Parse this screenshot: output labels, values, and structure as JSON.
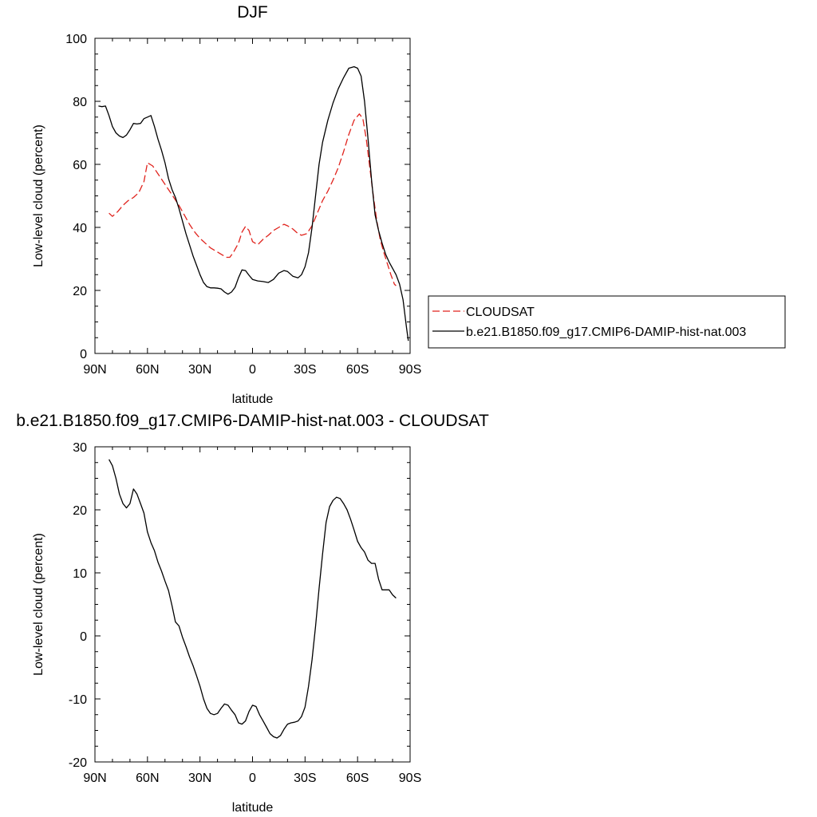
{
  "chart_data": [
    {
      "type": "line",
      "title": "DJF",
      "xlabel": "latitude",
      "ylabel": "Low-level cloud (percent)",
      "xlim": [
        90,
        -90
      ],
      "ylim": [
        0,
        100
      ],
      "xticks": [
        90,
        60,
        30,
        0,
        -30,
        -60,
        -90
      ],
      "xticklabels": [
        "90N",
        "60N",
        "30N",
        "0",
        "30S",
        "60S",
        "90S"
      ],
      "yticks": [
        0,
        20,
        40,
        60,
        80,
        100
      ],
      "yticklabels": [
        "0",
        "20",
        "40",
        "60",
        "80",
        "100"
      ],
      "legend": {
        "placement": "right",
        "entries": [
          "CLOUDSAT",
          "b.e21.B1850.f09_g17.CMIP6-DAMIP-hist-nat.003"
        ]
      },
      "series": [
        {
          "name": "CLOUDSAT",
          "color": "#e0231d",
          "dash": true,
          "x": [
            82,
            80,
            77,
            74,
            71,
            68,
            65,
            62,
            60,
            57,
            54,
            51,
            48,
            45,
            42,
            39,
            36,
            33,
            30,
            27,
            24,
            21,
            18,
            15,
            13,
            11,
            8,
            6,
            4,
            2,
            0,
            -3,
            -6,
            -9,
            -12,
            -15,
            -18,
            -20,
            -23,
            -26,
            -28,
            -31,
            -34,
            -37,
            -40,
            -43,
            -46,
            -49,
            -52,
            -55,
            -58,
            -61,
            -63,
            -65,
            -67,
            -69,
            -71,
            -73,
            -75,
            -77,
            -79,
            -81,
            -82
          ],
          "y": [
            44.5,
            43.5,
            45,
            47,
            48.5,
            49.5,
            51,
            54.5,
            60.5,
            59.5,
            57,
            54.5,
            52,
            49.5,
            47,
            44,
            41,
            38.5,
            36.5,
            35,
            33.5,
            32.5,
            31.5,
            30.5,
            30.5,
            32,
            35,
            38.5,
            40.3,
            39,
            35.5,
            34.5,
            36.2,
            37.5,
            39,
            40,
            41,
            40.5,
            39.5,
            38,
            37.5,
            38,
            40.5,
            44.5,
            48.5,
            51.5,
            55,
            59,
            64,
            69.5,
            74,
            76,
            74.5,
            68,
            59,
            50,
            42,
            36,
            32,
            28.5,
            25,
            22,
            21.5
          ]
        },
        {
          "name": "b.e21.B1850.f09_g17.CMIP6-DAMIP-hist-nat.003",
          "color": "#000000",
          "dash": false,
          "x": [
            88,
            86,
            84,
            82,
            80,
            78,
            76,
            74,
            72,
            70,
            68,
            66,
            64,
            62,
            60,
            58,
            56,
            54,
            52,
            50,
            48,
            46,
            44,
            42,
            40,
            38,
            36,
            34,
            32,
            30,
            28,
            26,
            24,
            22,
            20,
            18,
            16,
            14,
            12,
            10,
            8,
            6,
            4,
            2,
            0,
            -3,
            -6,
            -9,
            -12,
            -15,
            -18,
            -20,
            -23,
            -26,
            -28,
            -30,
            -32,
            -34,
            -36,
            -38,
            -40,
            -43,
            -46,
            -49,
            -52,
            -55,
            -58,
            -60,
            -62,
            -64,
            -66,
            -68,
            -70,
            -72,
            -74,
            -76,
            -78,
            -80,
            -82,
            -84,
            -86,
            -88,
            -89
          ],
          "y": [
            78.5,
            78.3,
            78.5,
            75.5,
            72,
            70,
            69,
            68.5,
            69.3,
            71,
            73,
            72.8,
            73,
            74.5,
            75,
            75.5,
            72,
            68,
            64.5,
            60.5,
            55.5,
            52,
            49.5,
            46,
            42,
            38,
            34.5,
            31,
            28,
            25,
            22.5,
            21.2,
            20.8,
            20.8,
            20.7,
            20.5,
            19.5,
            18.8,
            19.5,
            21,
            24,
            26.5,
            26.3,
            24.8,
            23.5,
            23,
            22.8,
            22.5,
            23.5,
            25.5,
            26.3,
            26,
            24.5,
            24,
            25,
            27.5,
            32,
            40,
            50,
            60,
            67,
            74,
            79.5,
            84,
            87.5,
            90.5,
            91,
            90.5,
            88,
            80,
            68,
            55,
            44,
            39,
            35,
            31.5,
            29,
            27,
            25,
            22,
            17,
            8,
            4
          ]
        }
      ]
    },
    {
      "type": "line",
      "title": "b.e21.B1850.f09_g17.CMIP6-DAMIP-hist-nat.003 - CLOUDSAT",
      "xlabel": "latitude",
      "ylabel": "Low-level cloud (percent)",
      "xlim": [
        90,
        -90
      ],
      "ylim": [
        -20,
        30
      ],
      "xticks": [
        90,
        60,
        30,
        0,
        -30,
        -60,
        -90
      ],
      "xticklabels": [
        "90N",
        "60N",
        "30N",
        "0",
        "30S",
        "60S",
        "90S"
      ],
      "yticks": [
        -20,
        -10,
        0,
        10,
        20,
        30
      ],
      "yticklabels": [
        "-20",
        "-10",
        "0",
        "10",
        "20",
        "30"
      ],
      "series": [
        {
          "color": "#000000",
          "dash": false,
          "x": [
            82,
            80,
            78,
            76,
            74,
            72,
            70,
            68,
            66,
            64,
            62,
            60,
            58,
            56,
            54,
            52,
            50,
            48,
            46,
            44,
            42,
            40,
            38,
            36,
            34,
            32,
            30,
            28,
            26,
            24,
            22,
            20,
            18,
            16,
            14,
            12,
            10,
            8,
            6,
            4,
            2,
            0,
            -2,
            -4,
            -6,
            -8,
            -10,
            -12,
            -14,
            -16,
            -18,
            -20,
            -22,
            -24,
            -26,
            -28,
            -30,
            -32,
            -34,
            -36,
            -38,
            -40,
            -42,
            -44,
            -46,
            -48,
            -50,
            -52,
            -54,
            -56,
            -58,
            -60,
            -62,
            -64,
            -66,
            -68,
            -70,
            -72,
            -74,
            -76,
            -78,
            -80,
            -82
          ],
          "y": [
            28,
            27,
            25,
            22.5,
            21,
            20.3,
            21,
            23.3,
            22.5,
            21,
            19.5,
            16.5,
            14.8,
            13.5,
            11.7,
            10.3,
            8.7,
            7.2,
            4.8,
            2.2,
            1.6,
            -0.2,
            -1.7,
            -3.3,
            -4.7,
            -6.3,
            -8,
            -10,
            -11.5,
            -12.3,
            -12.5,
            -12.3,
            -11.5,
            -10.8,
            -11,
            -11.8,
            -12.5,
            -13.8,
            -14,
            -13.5,
            -12,
            -11,
            -11.2,
            -12.5,
            -13.5,
            -14.5,
            -15.5,
            -16,
            -16.2,
            -15.8,
            -14.8,
            -14,
            -13.8,
            -13.7,
            -13.5,
            -12.8,
            -11.3,
            -8,
            -3.8,
            1.5,
            7.5,
            13,
            18,
            20.5,
            21.5,
            22,
            21.8,
            21,
            20,
            18.5,
            16.8,
            15,
            14,
            13.3,
            12,
            11.5,
            11.5,
            9,
            7.3,
            7.3,
            7.3,
            6.5,
            6
          ]
        }
      ]
    }
  ]
}
